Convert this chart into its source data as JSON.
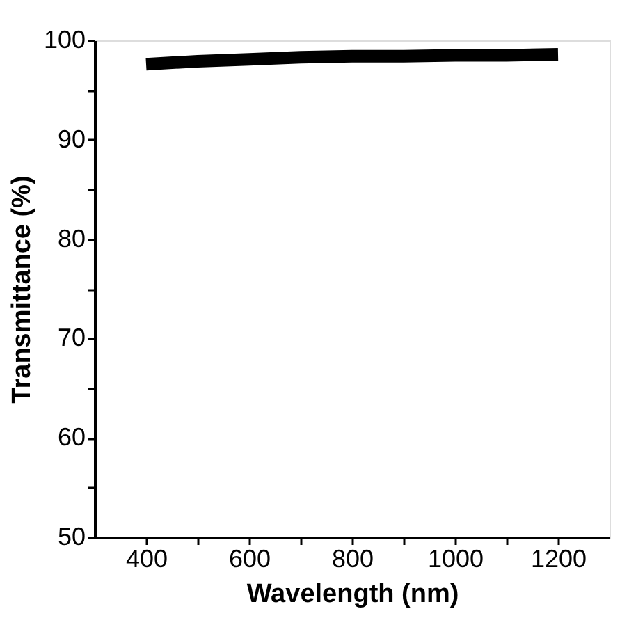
{
  "chart_data": {
    "type": "line",
    "xlabel": "Wavelength (nm)",
    "ylabel": "Transmittance (%)",
    "x": [
      400,
      500,
      600,
      700,
      800,
      900,
      1000,
      1100,
      1200
    ],
    "series": [
      {
        "color": "#000000",
        "values": [
          97.6,
          97.9,
          98.1,
          98.3,
          98.4,
          98.4,
          98.5,
          98.5,
          98.6
        ]
      }
    ],
    "xlim": [
      300,
      1300
    ],
    "ylim": [
      50,
      100
    ],
    "xticks": [
      400,
      {
        "value": 500,
        "label": null
      },
      600,
      {
        "value": 700,
        "label": null
      },
      800,
      {
        "value": 900,
        "label": null
      },
      1000,
      {
        "value": 1100,
        "label": null
      },
      1200
    ],
    "yticks": [
      50,
      {
        "value": 55,
        "label": null
      },
      60,
      {
        "value": 65,
        "label": null
      },
      70,
      {
        "value": 75,
        "label": null
      },
      80,
      {
        "value": 85,
        "label": null
      },
      90,
      {
        "value": 95,
        "label": null
      },
      100
    ],
    "grid": false,
    "legend": false,
    "marker": "none",
    "line_style": "solid"
  }
}
